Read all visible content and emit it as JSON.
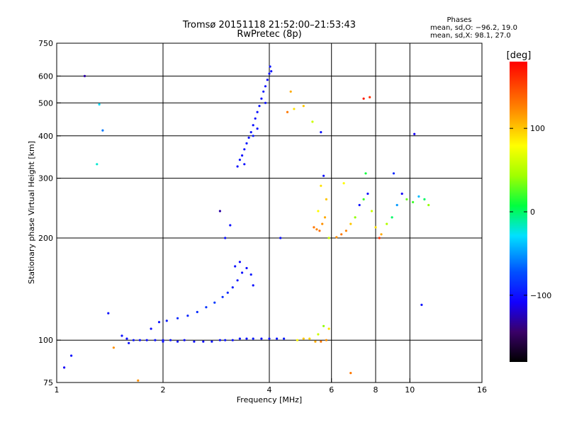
{
  "chart_data": {
    "type": "scatter",
    "title_line1": "Tromsø 20151118 21:52:00–21:53:43",
    "title_line2": "RwPretec (8p)",
    "xlabel": "Frequency [MHz]",
    "ylabel": "Stationary phase Virtual Height [km]",
    "x_scale": "log",
    "y_scale": "log",
    "xlim": [
      1,
      16
    ],
    "ylim": [
      75,
      750
    ],
    "x_ticks": [
      1,
      2,
      4,
      6,
      8,
      10,
      16
    ],
    "x_tick_labels": [
      "1",
      "2",
      "4",
      "6",
      "8",
      "10",
      "16"
    ],
    "y_ticks": [
      75,
      100,
      200,
      300,
      400,
      500,
      600,
      750
    ],
    "y_tick_labels": [
      "75",
      "100",
      "200",
      "300",
      "400",
      "500",
      "600",
      "750"
    ],
    "grid": true,
    "phase_info": {
      "title": "Phases",
      "line_o": "mean, sd,O: −96.2, 19.0",
      "line_x": "mean, sd,X:  98.1, 27.0"
    },
    "colorbar": {
      "label": "[deg]",
      "range": [
        -180,
        180
      ],
      "ticks": [
        100,
        0,
        -100
      ],
      "tick_labels": [
        "100",
        "0",
        "−100"
      ]
    },
    "series": [
      {
        "label_text": "",
        "points": [
          [
            1.53,
            103,
            -100
          ],
          [
            1.58,
            101,
            -102
          ],
          [
            1.65,
            100,
            -98
          ],
          [
            1.72,
            100,
            -100
          ],
          [
            1.8,
            100,
            -101
          ],
          [
            1.9,
            100,
            -99
          ],
          [
            2.0,
            100,
            -100
          ],
          [
            2.1,
            100,
            -98
          ],
          [
            2.2,
            99,
            -100
          ],
          [
            2.3,
            100,
            -102
          ],
          [
            2.45,
            99,
            -100
          ],
          [
            2.6,
            99,
            -101
          ],
          [
            2.75,
            99,
            -99
          ],
          [
            2.9,
            100,
            -100
          ],
          [
            3.0,
            100,
            -97
          ],
          [
            3.15,
            100,
            -100
          ],
          [
            3.3,
            101,
            -98
          ],
          [
            3.45,
            101,
            -100
          ],
          [
            3.6,
            101,
            -96
          ],
          [
            3.8,
            101,
            -99
          ],
          [
            4.0,
            101,
            -100
          ],
          [
            4.2,
            101,
            -98
          ],
          [
            4.4,
            101,
            -95
          ],
          [
            1.6,
            98,
            -100
          ],
          [
            2.0,
            99,
            -100
          ]
        ]
      },
      {
        "label_text": "",
        "points": [
          [
            1.85,
            108,
            -102
          ],
          [
            1.95,
            113,
            -100
          ],
          [
            2.05,
            114,
            -95
          ],
          [
            2.2,
            116,
            -90
          ],
          [
            2.35,
            118,
            -92
          ],
          [
            2.5,
            121,
            -88
          ],
          [
            2.65,
            125,
            -85
          ],
          [
            2.8,
            129,
            -82
          ],
          [
            2.95,
            134,
            -88
          ],
          [
            3.05,
            138,
            -90
          ],
          [
            3.15,
            143,
            -95
          ],
          [
            3.25,
            150,
            -98
          ],
          [
            3.35,
            158,
            -100
          ],
          [
            3.45,
            163,
            -102
          ],
          [
            3.55,
            156,
            -96
          ],
          [
            3.6,
            145,
            -100
          ],
          [
            3.3,
            170,
            -104
          ],
          [
            3.2,
            165,
            -100
          ]
        ]
      },
      {
        "label_text": "",
        "points": [
          [
            3.25,
            325,
            -100
          ],
          [
            3.3,
            340,
            -98
          ],
          [
            3.35,
            350,
            -102
          ],
          [
            3.4,
            365,
            -100
          ],
          [
            3.45,
            380,
            -96
          ],
          [
            3.5,
            395,
            -100
          ],
          [
            3.55,
            410,
            -98
          ],
          [
            3.6,
            430,
            -100
          ],
          [
            3.65,
            450,
            -102
          ],
          [
            3.7,
            470,
            -100
          ],
          [
            3.75,
            490,
            -98
          ],
          [
            3.8,
            515,
            -100
          ],
          [
            3.85,
            540,
            -96
          ],
          [
            3.9,
            560,
            -100
          ],
          [
            3.95,
            585,
            -102
          ],
          [
            4.0,
            610,
            -100
          ],
          [
            4.02,
            640,
            -98
          ],
          [
            4.05,
            620,
            -100
          ],
          [
            3.6,
            400,
            -95
          ],
          [
            3.4,
            330,
            -100
          ],
          [
            3.7,
            420,
            -100
          ],
          [
            3.9,
            500,
            -99
          ]
        ]
      },
      {
        "label_text": "",
        "points": [
          [
            4.8,
            100,
            80
          ],
          [
            5.0,
            101,
            100
          ],
          [
            5.2,
            101,
            95
          ],
          [
            5.4,
            99,
            110
          ],
          [
            5.6,
            99,
            130
          ],
          [
            5.8,
            100,
            120
          ],
          [
            5.5,
            104,
            60
          ],
          [
            5.7,
            110,
            40
          ],
          [
            5.9,
            108,
            90
          ]
        ]
      },
      {
        "label_text": "",
        "points": [
          [
            5.35,
            215,
            130
          ],
          [
            5.45,
            212,
            125
          ],
          [
            5.55,
            210,
            135
          ],
          [
            5.65,
            220,
            120
          ],
          [
            5.75,
            230,
            110
          ],
          [
            5.8,
            260,
            100
          ],
          [
            5.6,
            285,
            90
          ],
          [
            5.7,
            305,
            -100
          ],
          [
            5.5,
            240,
            80
          ],
          [
            5.9,
            200,
            60
          ]
        ]
      },
      {
        "label_text": "",
        "points": [
          [
            6.2,
            201,
            120
          ],
          [
            6.4,
            205,
            130
          ],
          [
            6.6,
            210,
            125
          ],
          [
            6.8,
            220,
            100
          ],
          [
            7.0,
            230,
            40
          ],
          [
            7.2,
            250,
            -100
          ],
          [
            7.4,
            260,
            20
          ],
          [
            7.6,
            270,
            -100
          ],
          [
            7.8,
            240,
            60
          ],
          [
            8.0,
            215,
            90
          ],
          [
            8.3,
            205,
            110
          ],
          [
            8.6,
            220,
            50
          ],
          [
            8.9,
            230,
            0
          ],
          [
            9.2,
            250,
            -50
          ],
          [
            9.5,
            270,
            -110
          ],
          [
            9.8,
            260,
            30
          ],
          [
            10.2,
            255,
            20
          ],
          [
            10.6,
            265,
            -40
          ],
          [
            11.0,
            260,
            0
          ],
          [
            11.3,
            250,
            40
          ],
          [
            6.5,
            290,
            80
          ],
          [
            7.5,
            310,
            10
          ],
          [
            8.2,
            200,
            160
          ],
          [
            9.0,
            310,
            -90
          ]
        ]
      },
      {
        "label_text": "",
        "points": [
          [
            4.5,
            470,
            130
          ],
          [
            4.7,
            480,
            90
          ],
          [
            5.0,
            490,
            100
          ],
          [
            5.3,
            440,
            60
          ],
          [
            5.6,
            410,
            -100
          ],
          [
            4.6,
            540,
            110
          ],
          [
            1.32,
            495,
            -30
          ],
          [
            1.35,
            415,
            -60
          ],
          [
            1.3,
            330,
            -20
          ],
          [
            1.2,
            600,
            -130
          ],
          [
            1.4,
            120,
            -100
          ],
          [
            1.1,
            90,
            -100
          ],
          [
            1.05,
            83,
            -110
          ],
          [
            1.45,
            95,
            120
          ],
          [
            1.7,
            76,
            120
          ],
          [
            2.9,
            240,
            -130
          ],
          [
            3.1,
            218,
            -100
          ],
          [
            7.4,
            515,
            170
          ],
          [
            7.7,
            520,
            160
          ],
          [
            10.3,
            405,
            -110
          ],
          [
            10.8,
            127,
            -100
          ],
          [
            6.8,
            80,
            130
          ],
          [
            4.3,
            200,
            -100
          ],
          [
            3.0,
            200,
            -100
          ]
        ]
      }
    ]
  }
}
